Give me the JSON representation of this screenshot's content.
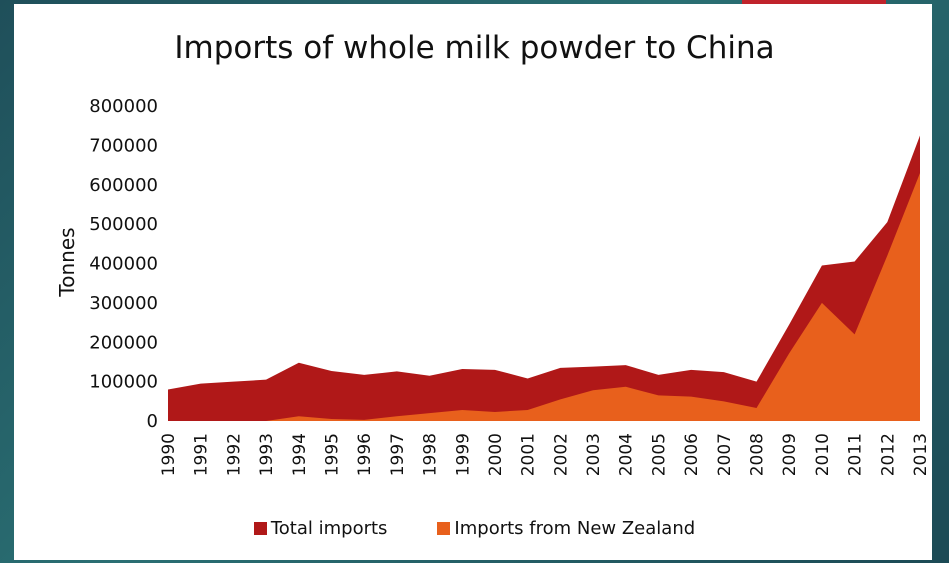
{
  "colors": {
    "total": "#b01818",
    "nz": "#e8601c",
    "accent": "#c0232b"
  },
  "chart_data": {
    "type": "area",
    "title": "Imports of whole milk powder to China",
    "ylabel": "Tonnes",
    "xlabel": "",
    "ylim": [
      0,
      800000
    ],
    "yticks": [
      "0",
      "100000",
      "200000",
      "300000",
      "400000",
      "500000",
      "600000",
      "700000",
      "800000"
    ],
    "x": [
      "1990",
      "1991",
      "1992",
      "1993",
      "1994",
      "1995",
      "1996",
      "1997",
      "1998",
      "1999",
      "2000",
      "2001",
      "2002",
      "2003",
      "2004",
      "2005",
      "2006",
      "2007",
      "2008",
      "2009",
      "2010",
      "2011",
      "2012",
      "2013"
    ],
    "series": [
      {
        "name": "Total imports",
        "values": [
          80000,
          95000,
          100000,
          105000,
          148000,
          127000,
          117000,
          126000,
          115000,
          132000,
          130000,
          108000,
          135000,
          138000,
          142000,
          117000,
          130000,
          124000,
          100000,
          245000,
          395000,
          405000,
          505000,
          725000
        ]
      },
      {
        "name": "Imports from New Zealand",
        "values": [
          0,
          0,
          0,
          0,
          12000,
          5000,
          3000,
          12000,
          20000,
          28000,
          23000,
          28000,
          55000,
          78000,
          87000,
          65000,
          62000,
          50000,
          33000,
          172000,
          300000,
          220000,
          420000,
          630000
        ]
      }
    ],
    "legend_position": "bottom",
    "grid": false
  }
}
